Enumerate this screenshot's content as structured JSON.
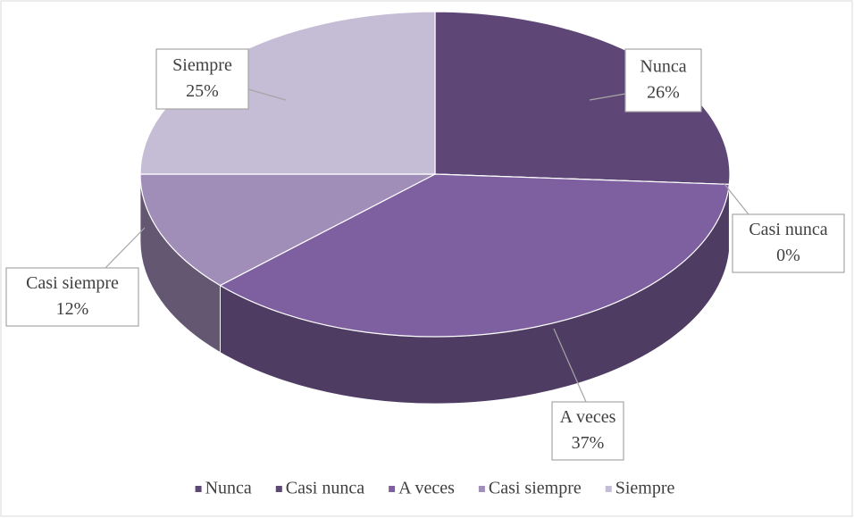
{
  "chart_data": {
    "type": "pie3d",
    "categories": [
      "Nunca",
      "Casi nunca",
      "A veces",
      "Casi siempre",
      "Siempre"
    ],
    "values": [
      26,
      0,
      37,
      12,
      25
    ],
    "value_labels": [
      "26%",
      "0%",
      "37%",
      "12%",
      "25%"
    ],
    "colors": [
      "#5e4776",
      "#5e4776",
      "#7e60a0",
      "#a08db8",
      "#c5bcd5"
    ],
    "legend": "bottom"
  }
}
